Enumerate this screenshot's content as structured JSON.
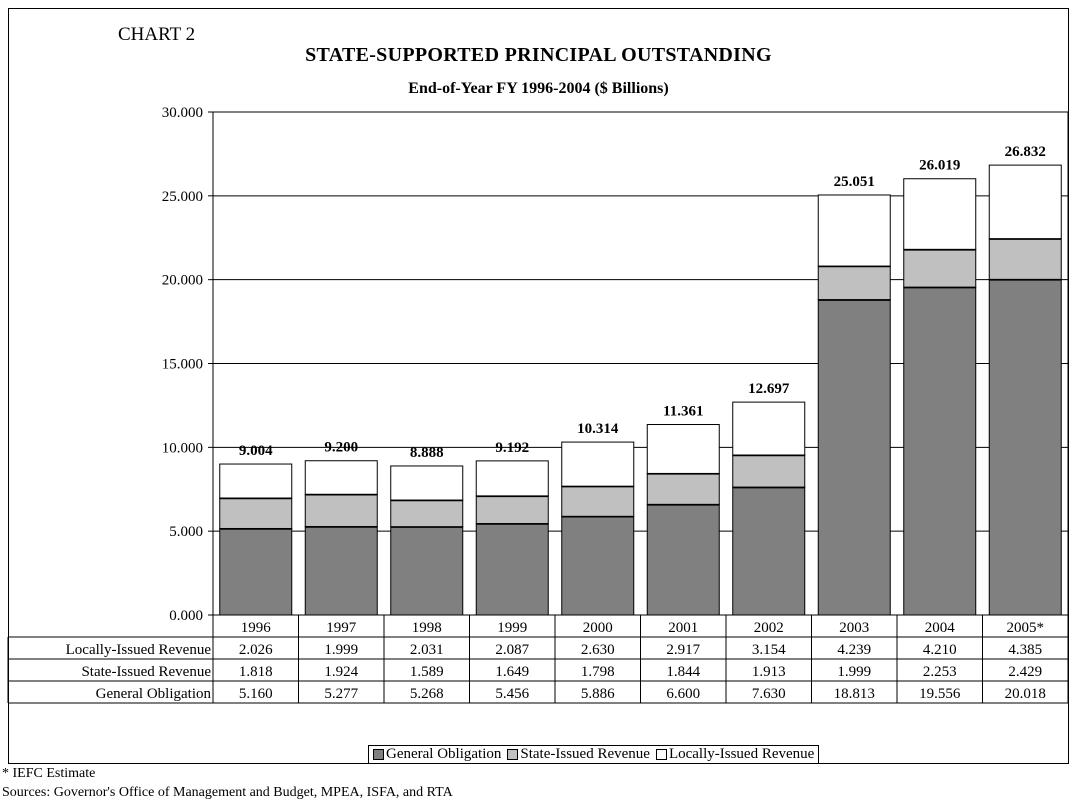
{
  "header": {
    "chart_label": "CHART 2",
    "title": "STATE-SUPPORTED PRINCIPAL OUTSTANDING",
    "subtitle": "End-of-Year FY 1996-2004  ($ Billions)"
  },
  "legend": {
    "items": [
      {
        "label": "General Obligation",
        "color": "#808080"
      },
      {
        "label": "State-Issued Revenue",
        "color": "#c0c0c0"
      },
      {
        "label": "Locally-Issued Revenue",
        "color": "#ffffff"
      }
    ]
  },
  "footer": {
    "footnote": "* IEFC Estimate",
    "sources": "Sources: Governor's Office of Management and Budget, MPEA, ISFA, and RTA"
  },
  "chart_data": {
    "type": "bar",
    "stacked": true,
    "categories": [
      "1996",
      "1997",
      "1998",
      "1999",
      "2000",
      "2001",
      "2002",
      "2003",
      "2004",
      "2005*"
    ],
    "series": [
      {
        "name": "General Obligation",
        "color": "#808080",
        "values": [
          "5.160",
          "5.277",
          "5.268",
          "5.456",
          "5.886",
          "6.600",
          "7.630",
          "18.813",
          "19.556",
          "20.018"
        ]
      },
      {
        "name": "State-Issued Revenue",
        "color": "#c0c0c0",
        "values": [
          "1.818",
          "1.924",
          "1.589",
          "1.649",
          "1.798",
          "1.844",
          "1.913",
          "1.999",
          "2.253",
          "2.429"
        ]
      },
      {
        "name": "Locally-Issued Revenue",
        "color": "#ffffff",
        "values": [
          "2.026",
          "1.999",
          "2.031",
          "2.087",
          "2.630",
          "2.917",
          "3.154",
          "4.239",
          "4.210",
          "4.385"
        ]
      }
    ],
    "totals": [
      "9.004",
      "9.200",
      "8.888",
      "9.192",
      "10.314",
      "11.361",
      "12.697",
      "25.051",
      "26.019",
      "26.832"
    ],
    "table_rows": [
      {
        "label": "Locally-Issued Revenue",
        "series_index": 2
      },
      {
        "label": "State-Issued Revenue",
        "series_index": 1
      },
      {
        "label": "General Obligation",
        "series_index": 0
      }
    ],
    "y_ticks": [
      "0.000",
      "5.000",
      "10.000",
      "15.000",
      "20.000",
      "25.000",
      "30.000"
    ],
    "ylim": [
      0,
      30
    ],
    "grid": true,
    "legend_position": "bottom",
    "xlabel": "",
    "ylabel": ""
  }
}
